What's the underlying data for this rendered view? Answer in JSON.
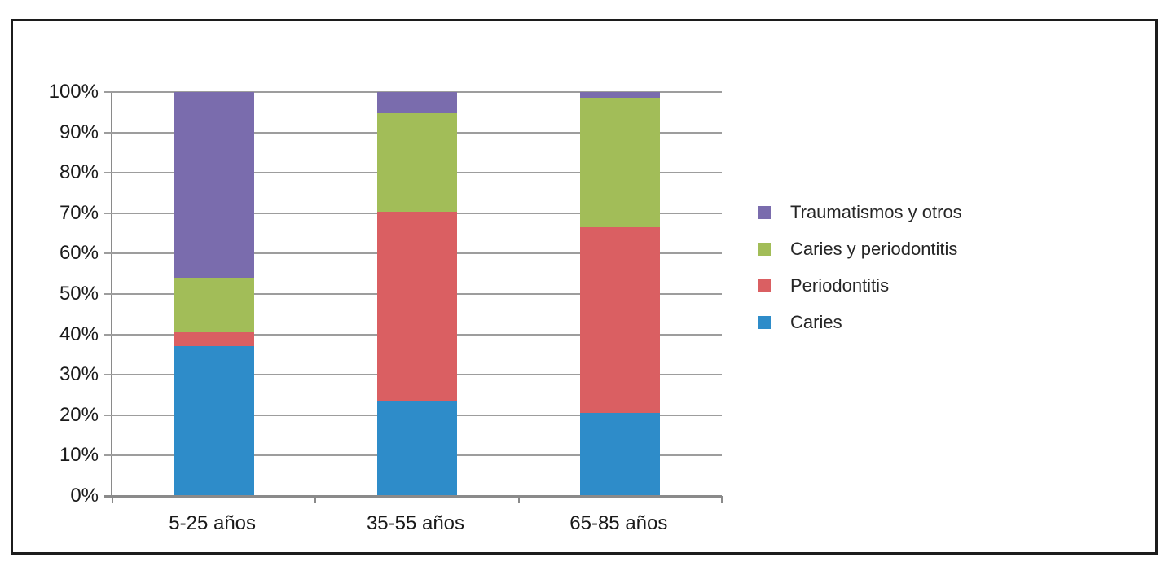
{
  "chart_data": {
    "type": "bar",
    "variant": "stacked-100",
    "title": "",
    "xlabel": "",
    "ylabel": "",
    "unit": "%",
    "ylim": [
      0,
      100
    ],
    "grid": true,
    "legend_position": "right",
    "categories": [
      "5-25 años",
      "35-55 años",
      "65-85 años"
    ],
    "y_ticks": [
      "0%",
      "10%",
      "20%",
      "30%",
      "40%",
      "50%",
      "60%",
      "70%",
      "80%",
      "90%",
      "100%"
    ],
    "series": [
      {
        "name": "Caries",
        "color": "#2e8cc9",
        "values": [
          37.0,
          23.3,
          20.5
        ]
      },
      {
        "name": "Periodontitis",
        "color": "#da5f62",
        "values": [
          3.5,
          47.0,
          46.0
        ]
      },
      {
        "name": "Caries y periodontitis",
        "color": "#a2bd58",
        "values": [
          13.5,
          24.4,
          32.1
        ]
      },
      {
        "name": "Traumatismos y otros",
        "color": "#7a6cad",
        "values": [
          46.0,
          5.3,
          1.4
        ]
      }
    ],
    "legend_order": [
      "Traumatismos y otros",
      "Caries y periodontitis",
      "Periodontitis",
      "Caries"
    ]
  },
  "style_colors": {
    "gridline": "#9d9d9d",
    "axis": "#8a8a8a",
    "frame_border": "#1c1c1c",
    "text": "#1a1a1a",
    "background": "#ffffff"
  }
}
